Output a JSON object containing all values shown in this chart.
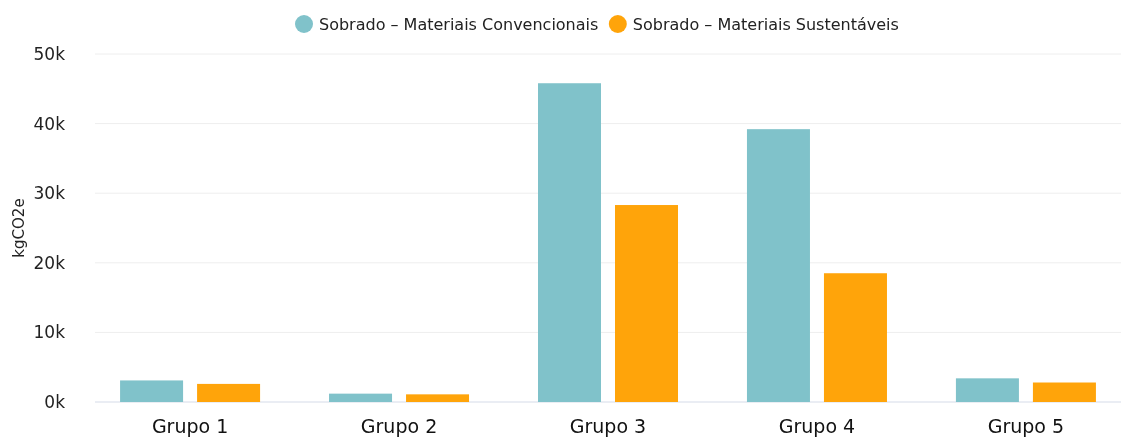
{
  "chart_data": {
    "type": "bar",
    "ylabel": "kgCO2e",
    "categories": [
      "Grupo 1",
      "Grupo 2",
      "Grupo 3",
      "Grupo 4",
      "Grupo 5"
    ],
    "series": [
      {
        "name": "Sobrado – Materiais Convencionais",
        "color": "#80c2ca",
        "values": [
          3.1,
          1.2,
          45.8,
          39.2,
          3.4
        ]
      },
      {
        "name": "Sobrado – Materiais Sustentáveis",
        "color": "#ffa40a",
        "values": [
          2.6,
          1.1,
          28.3,
          18.5,
          2.8
        ]
      }
    ],
    "ylim": [
      0,
      50
    ],
    "yticks": [
      {
        "value": 0,
        "label": "0k"
      },
      {
        "value": 10,
        "label": "10k"
      },
      {
        "value": 20,
        "label": "20k"
      },
      {
        "value": 30,
        "label": "30k"
      },
      {
        "value": 40,
        "label": "40k"
      },
      {
        "value": 50,
        "label": "50k"
      }
    ],
    "grid": "y",
    "legend": "top"
  }
}
